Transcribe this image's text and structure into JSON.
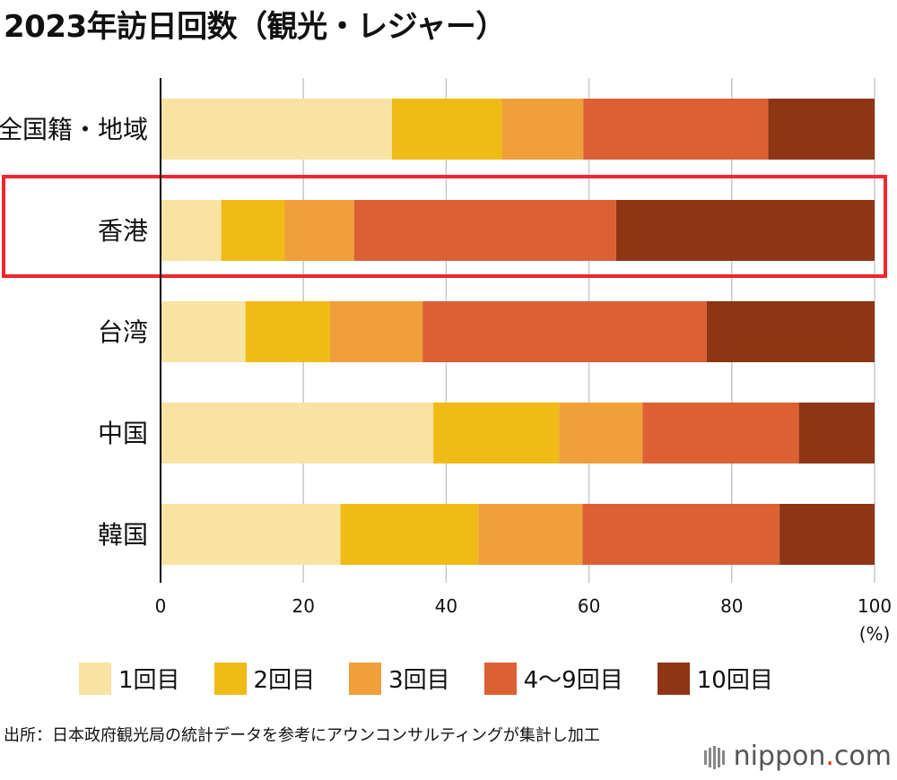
{
  "chart_data": {
    "type": "bar",
    "orientation": "horizontal",
    "stacked": true,
    "title": "2023年訪日回数（観光・レジャー）",
    "categories": [
      "全国籍・地域",
      "香港",
      "台湾",
      "中国",
      "韓国"
    ],
    "highlighted_category": "香港",
    "series": [
      {
        "name": "1回目",
        "color": "#f8e3a3",
        "values": [
          32.4,
          8.5,
          11.9,
          38.2,
          25.2
        ]
      },
      {
        "name": "2回目",
        "color": "#f0bb17",
        "values": [
          15.4,
          8.9,
          11.8,
          17.6,
          19.3
        ]
      },
      {
        "name": "3回目",
        "color": "#f0a03a",
        "values": [
          11.4,
          9.7,
          13.0,
          11.7,
          14.6
        ]
      },
      {
        "name": "4～9回目",
        "color": "#db6034",
        "values": [
          25.9,
          36.7,
          39.8,
          21.9,
          27.6
        ]
      },
      {
        "name": "10回目",
        "color": "#8e3515",
        "values": [
          14.9,
          36.2,
          23.5,
          10.6,
          13.3
        ]
      }
    ],
    "xlim": [
      0,
      100
    ],
    "xticks": [
      0,
      20,
      40,
      60,
      80,
      100
    ],
    "xticklabels": [
      "0",
      "20",
      "40",
      "60",
      "80",
      "100"
    ],
    "xunit": "(%)",
    "grid": true,
    "legend_position": "bottom"
  },
  "source": "出所：日本政府観光局の統計データを参考にアウンコンサルティングが集計し加工",
  "brand": {
    "name": "nippon",
    "dot": ".",
    "tld": "com"
  },
  "colors": {
    "highlight_box": "#f0272d",
    "grid": "#c8c8c8",
    "axis": "#000000"
  }
}
